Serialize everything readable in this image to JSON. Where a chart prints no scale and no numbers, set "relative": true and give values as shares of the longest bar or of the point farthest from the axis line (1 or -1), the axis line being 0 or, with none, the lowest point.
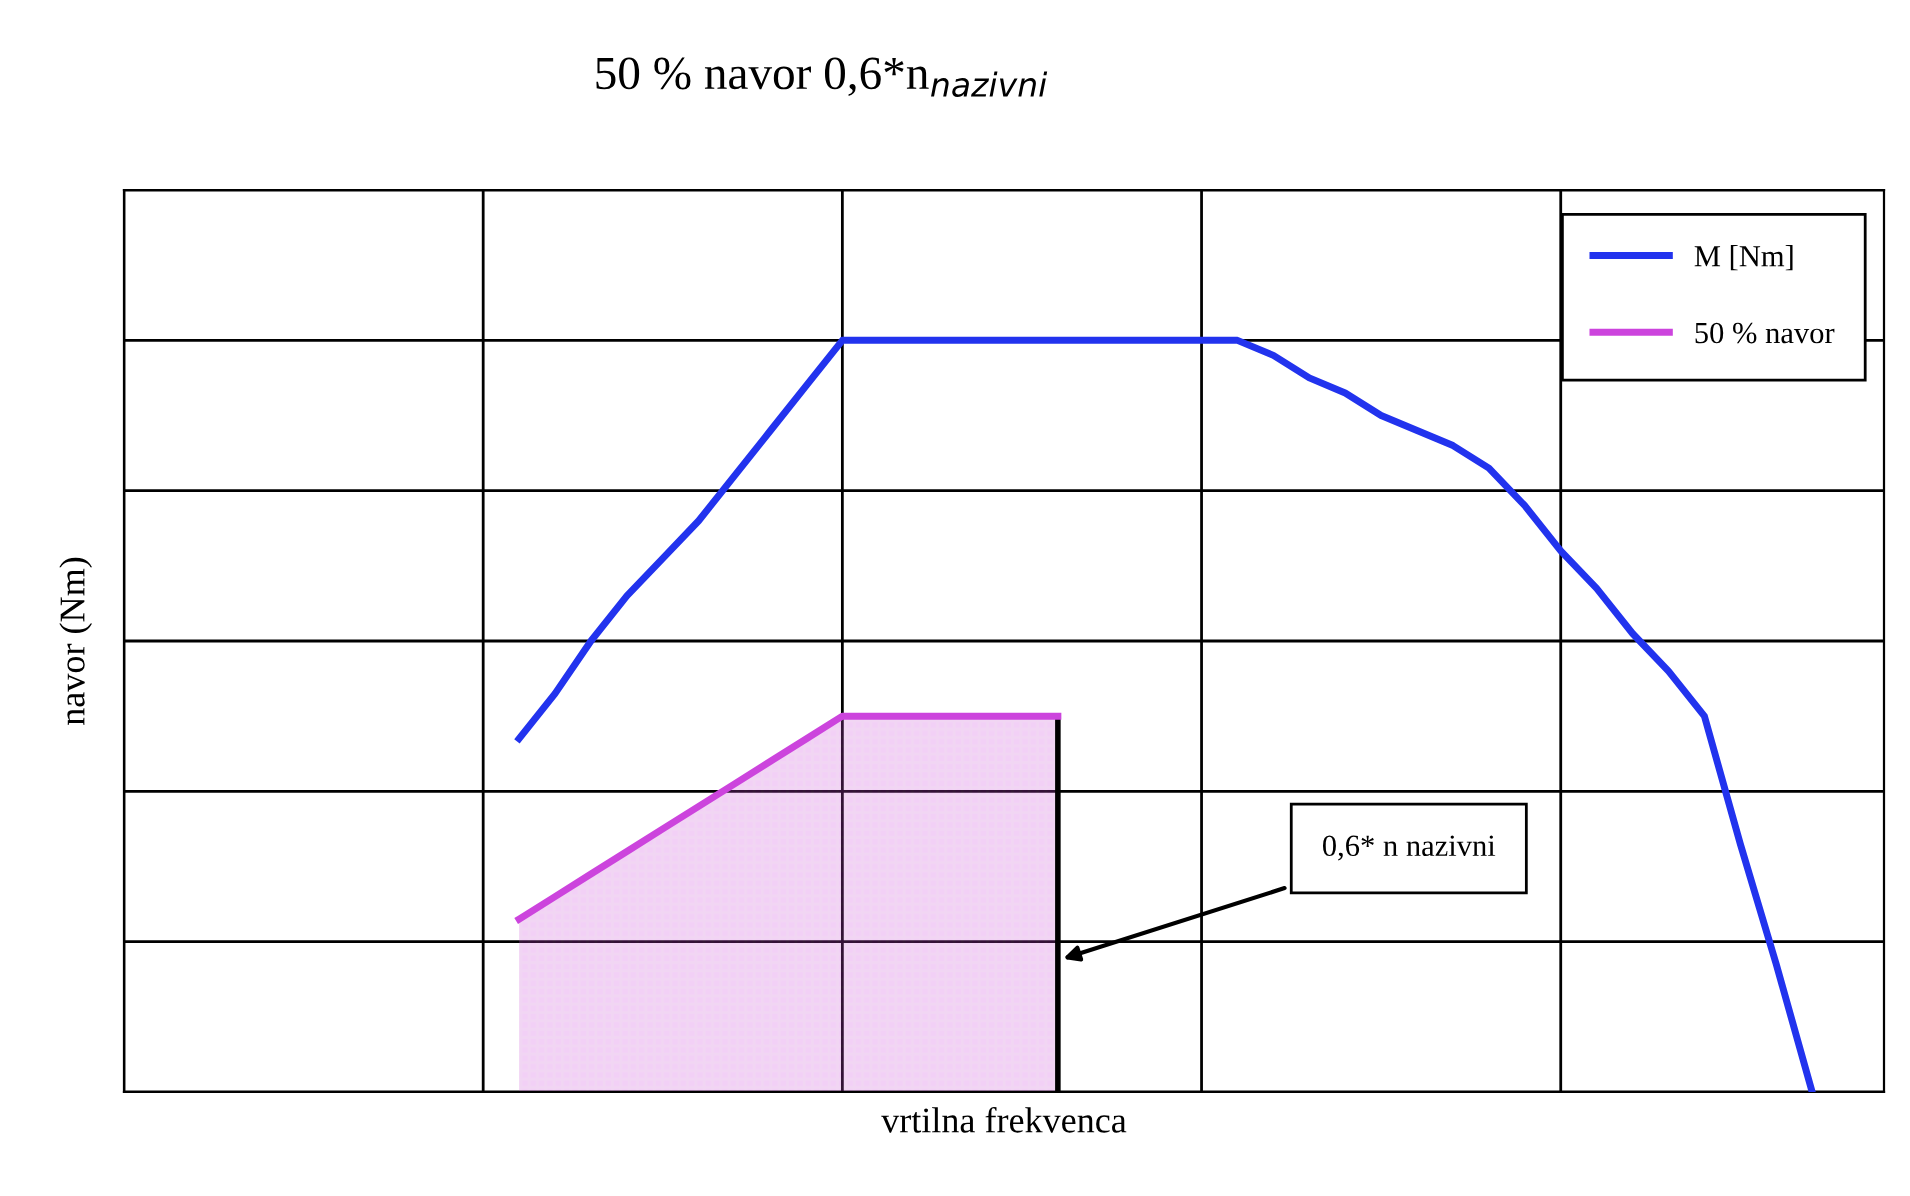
{
  "chart_data": {
    "type": "line",
    "title": "50 % navor 0,6*n$_{nazivni}$",
    "xlabel": "vrtilna frekvenca",
    "ylabel": "navor (Nm)",
    "relative": true,
    "categories": [
      null,
      null,
      null,
      null,
      null,
      null,
      null,
      null,
      null,
      null,
      null,
      null,
      null,
      null,
      null,
      null,
      null,
      null,
      null,
      null,
      null,
      null,
      null,
      null,
      null,
      null,
      null,
      null,
      null,
      null,
      null,
      null,
      null,
      null,
      null,
      null,
      null,
      null,
      null,
      null,
      null,
      null,
      null,
      null,
      null,
      null,
      null,
      null,
      null,
      null
    ],
    "grid": true,
    "legend": "top right",
    "marker": "none",
    "line_style": "solid",
    "series": [
      {
        "name": "M [Nm]",
        "color": "#2233ee",
        "values": [
          null,
          null,
          null,
          null,
          null,
          null,
          null,
          null,
          null,
          null,
          null,
          0.47,
          0.53,
          0.6,
          0.66,
          0.71,
          0.76,
          0.82,
          0.88,
          0.94,
          1.0,
          1.0,
          1.0,
          1.0,
          1.0,
          1.0,
          1.0,
          1.0,
          1.0,
          1.0,
          1.0,
          1.0,
          0.98,
          0.95,
          0.93,
          0.9,
          0.88,
          0.86,
          0.83,
          0.78,
          0.72,
          0.67,
          0.61,
          0.56,
          0.5,
          0.33,
          0.17,
          0,
          null,
          null
        ]
      },
      {
        "name": "50 % navor",
        "type": "area",
        "color": "#cc44dd",
        "values": [
          null,
          null,
          null,
          null,
          null,
          null,
          null,
          null,
          null,
          null,
          null,
          0.23,
          0.26,
          0.29,
          0.32,
          0.35,
          0.38,
          0.41,
          0.44,
          0.47,
          0.5,
          0.5,
          0.5,
          0.5,
          0.5,
          0.5,
          0.5,
          null,
          null,
          null,
          null,
          null,
          null,
          null,
          null,
          null,
          null,
          null,
          null,
          null,
          null,
          null,
          null,
          null,
          null,
          null,
          null,
          null,
          null,
          null
        ]
      }
    ],
    "annotations": [
      "0,6* n nazivni"
    ]
  }
}
